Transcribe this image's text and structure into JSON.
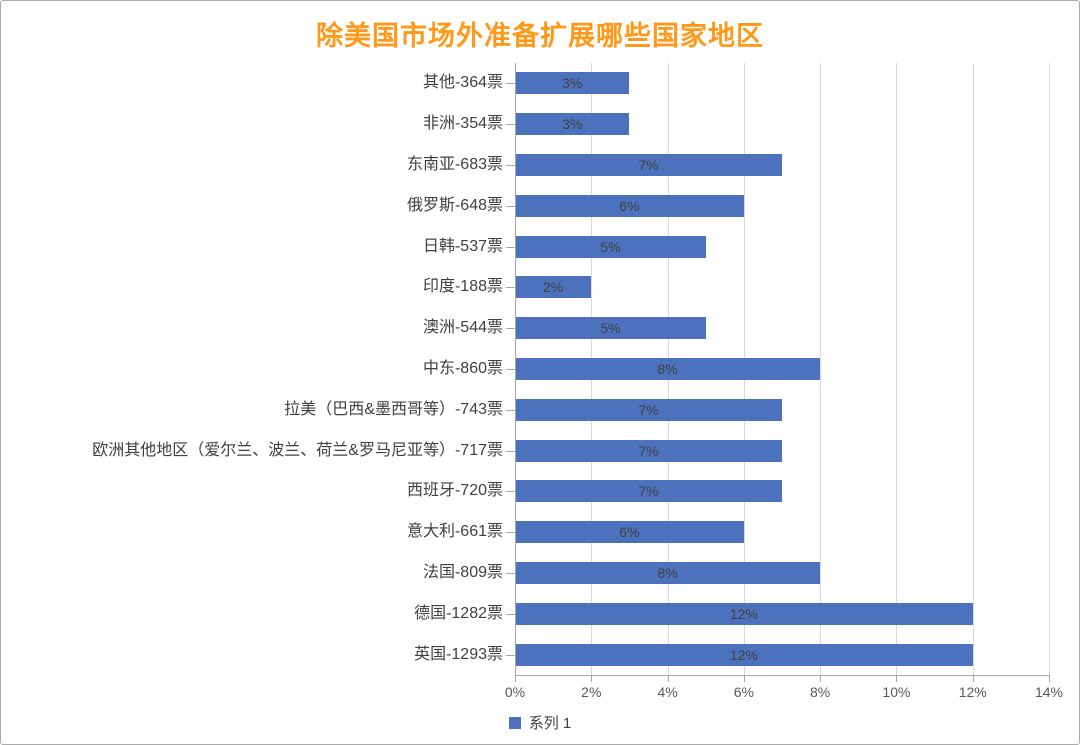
{
  "title": "除美国市场外准备扩展哪些国家地区",
  "colors": {
    "title": "#FF9919",
    "bar": "#4C72BE",
    "grid": "#D9D9D9",
    "axis": "#A6A6A6",
    "label": "#404040",
    "tick": "#595959"
  },
  "legend": {
    "series_label": "系列 1"
  },
  "chart_data": {
    "type": "bar",
    "orientation": "horizontal",
    "title": "除美国市场外准备扩展哪些国家地区",
    "categories": [
      "其他-364票",
      "非洲-354票",
      "东南亚-683票",
      "俄罗斯-648票",
      "日韩-537票",
      "印度-188票",
      "澳洲-544票",
      "中东-860票",
      "拉美（巴西&墨西哥等）-743票",
      "欧洲其他地区（爱尔兰、波兰、荷兰&罗马尼亚等）-717票",
      "西班牙-720票",
      "意大利-661票",
      "法国-809票",
      "德国-1282票",
      "英国-1293票"
    ],
    "values": [
      3,
      3,
      7,
      6,
      5,
      2,
      5,
      8,
      7,
      7,
      7,
      6,
      8,
      12,
      12
    ],
    "value_labels": [
      "3%",
      "3%",
      "7%",
      "6%",
      "5%",
      "2%",
      "5%",
      "8%",
      "7%",
      "7%",
      "7%",
      "6%",
      "8%",
      "12%",
      "12%"
    ],
    "votes": [
      364,
      354,
      683,
      648,
      537,
      188,
      544,
      860,
      743,
      717,
      720,
      661,
      809,
      1282,
      1293
    ],
    "series": [
      {
        "name": "系列 1",
        "values": [
          3,
          3,
          7,
          6,
          5,
          2,
          5,
          8,
          7,
          7,
          7,
          6,
          8,
          12,
          12
        ]
      }
    ],
    "xlabel": "",
    "ylabel": "",
    "x_ticks": [
      "0%",
      "2%",
      "4%",
      "6%",
      "8%",
      "10%",
      "12%",
      "14%"
    ],
    "x_tick_values": [
      0,
      2,
      4,
      6,
      8,
      10,
      12,
      14
    ],
    "xlim": [
      0,
      14
    ],
    "grid": true,
    "legend_position": "bottom"
  }
}
